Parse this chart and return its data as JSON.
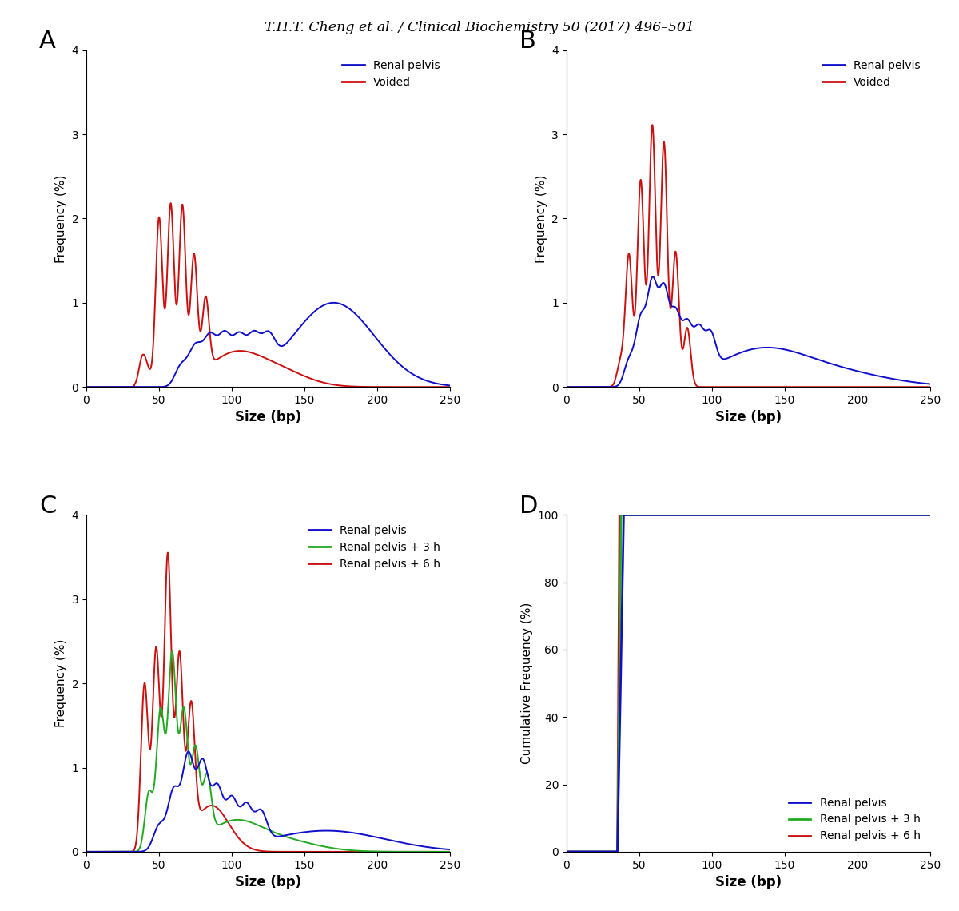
{
  "title": "T.H.T. Cheng et al. / Clinical Biochemistry 50 (2017) 496–501",
  "xlim": [
    0,
    250
  ],
  "ylim_freq": [
    0,
    4
  ],
  "ylim_cumfreq": [
    0,
    100
  ],
  "xticks": [
    0,
    50,
    100,
    150,
    200,
    250
  ],
  "yticks_freq": [
    0,
    1,
    2,
    3,
    4
  ],
  "yticks_cumfreq": [
    0,
    20,
    40,
    60,
    80,
    100
  ],
  "xlabel": "Size (bp)",
  "ylabel_freq": "Frequency (%)",
  "ylabel_cumfreq": "Cumulative Frequency (%)",
  "colors": {
    "blue": "#1010CC",
    "red": "#CC1010",
    "green": "#22AA22"
  }
}
